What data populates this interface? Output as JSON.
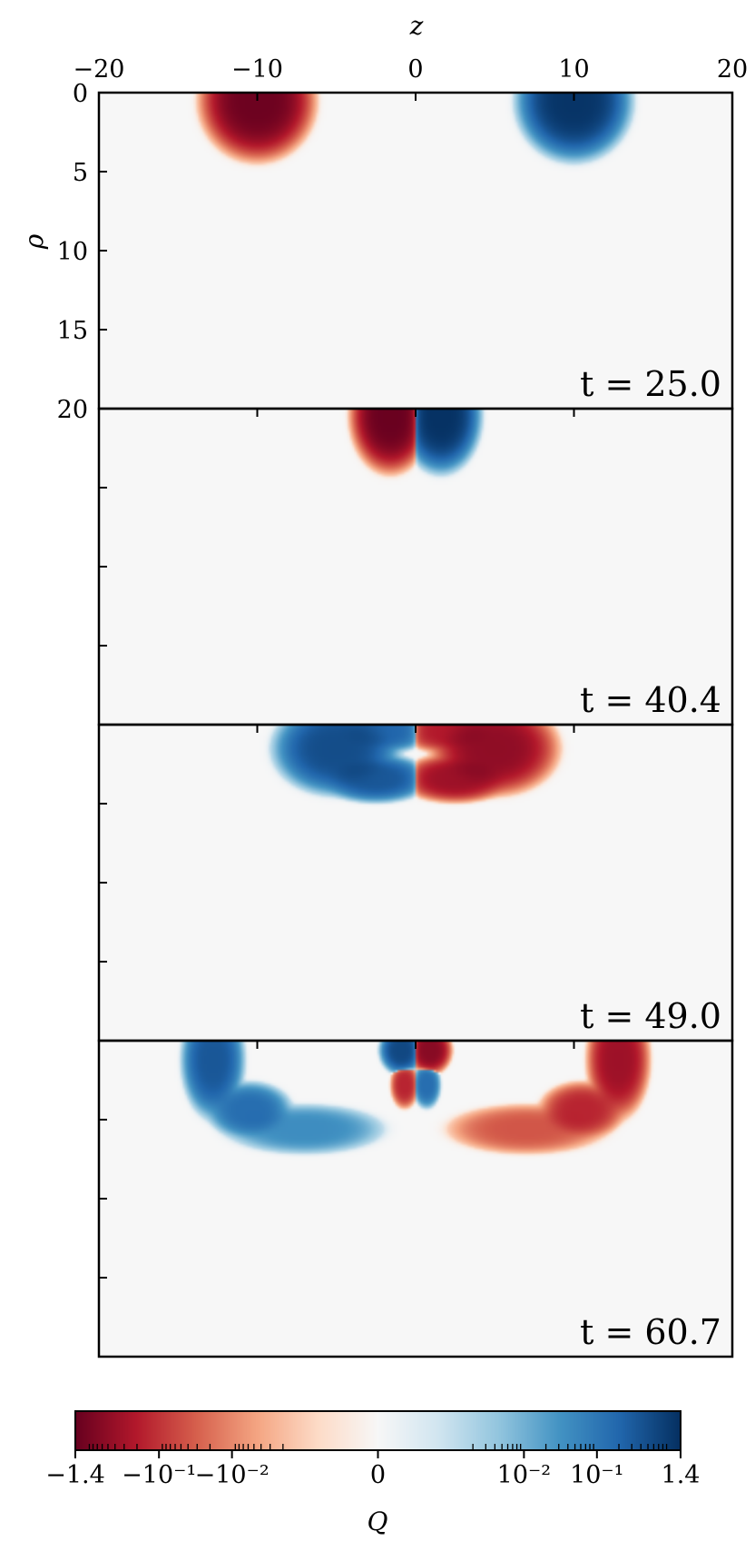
{
  "chart_data": {
    "type": "heatmap",
    "xlabel": "z",
    "ylabel": "ρ",
    "xlim": [
      -20,
      20
    ],
    "ylim": [
      0,
      20
    ],
    "y_inverted": true,
    "x_ticks": [
      -20,
      -10,
      0,
      10,
      20
    ],
    "x_tick_labels": [
      "−20",
      "−10",
      "0",
      "10",
      "20"
    ],
    "y_ticks": [
      0,
      5,
      10,
      15,
      20
    ],
    "y_tick_labels": [
      "0",
      "5",
      "10",
      "15",
      "20"
    ],
    "colormap": "RdBu diverging, symmetric log scale",
    "colors": {
      "neg_max": "#67001f",
      "neg_mid": "#f4a582",
      "zero": "#f7f7f7",
      "pos_mid": "#92c5de",
      "pos_max": "#053061"
    },
    "colorbar": {
      "label": "Q",
      "range": [
        -1.4,
        1.4
      ],
      "linthresh": 0.001,
      "tick_values": [
        -1.4,
        -0.1,
        -0.01,
        0,
        0.01,
        0.1,
        1.4
      ],
      "tick_labels": [
        "−1.4",
        "−10⁻¹",
        "−10⁻²",
        "0",
        "10⁻²",
        "10⁻¹",
        "1.4"
      ]
    },
    "panels": [
      {
        "time_label": "t = 25.0",
        "blobs": [
          {
            "z": -10,
            "rho": 0.5,
            "wz": 2.3,
            "wr": 2.4,
            "value": -1.2
          },
          {
            "z": 10,
            "rho": 0.5,
            "wz": 2.3,
            "wr": 2.4,
            "value": 1.2
          }
        ]
      },
      {
        "time_label": "t = 40.4",
        "blobs": [
          {
            "z": -1.6,
            "rho": 0.4,
            "wz": 1.6,
            "wr": 2.3,
            "value": -1.3
          },
          {
            "z": 1.6,
            "rho": 0.4,
            "wz": 1.6,
            "wr": 2.3,
            "value": 1.3
          }
        ]
      },
      {
        "time_label": "t = 49.0",
        "blobs": [
          {
            "z": -5,
            "rho": 1.5,
            "wz": 2.6,
            "wr": 1.9,
            "value": 0.5
          },
          {
            "z": -2.5,
            "rho": 3.4,
            "wz": 2.3,
            "wr": 1.0,
            "value": 0.35
          },
          {
            "z": -2.0,
            "rho": 0.4,
            "wz": 2.1,
            "wr": 0.9,
            "value": 0.2
          },
          {
            "z": 5,
            "rho": 1.5,
            "wz": 2.6,
            "wr": 1.9,
            "value": -0.5
          },
          {
            "z": 2.5,
            "rho": 3.4,
            "wz": 2.3,
            "wr": 1.0,
            "value": -0.35
          },
          {
            "z": 2.0,
            "rho": 0.4,
            "wz": 2.1,
            "wr": 0.9,
            "value": -0.2
          }
        ]
      },
      {
        "time_label": "t = 60.7",
        "blobs": [
          {
            "z": -12.8,
            "rho": 1.2,
            "wz": 1.3,
            "wr": 2.4,
            "value": 0.35
          },
          {
            "z": -10.5,
            "rho": 4.4,
            "wz": 1.8,
            "wr": 1.2,
            "value": 0.15
          },
          {
            "z": -7,
            "rho": 5.6,
            "wz": 3.5,
            "wr": 1.1,
            "value": 0.04
          },
          {
            "z": -0.9,
            "rho": 0.6,
            "wz": 0.9,
            "wr": 1.0,
            "value": 0.6
          },
          {
            "z": 0.7,
            "rho": 2.8,
            "wz": 0.6,
            "wr": 1.0,
            "value": 0.15
          },
          {
            "z": 12.8,
            "rho": 1.2,
            "wz": 1.3,
            "wr": 2.4,
            "value": -0.35
          },
          {
            "z": 10.5,
            "rho": 4.4,
            "wz": 1.8,
            "wr": 1.2,
            "value": -0.15
          },
          {
            "z": 7,
            "rho": 5.6,
            "wz": 3.5,
            "wr": 1.1,
            "value": -0.04
          },
          {
            "z": 0.9,
            "rho": 0.6,
            "wz": 0.9,
            "wr": 1.0,
            "value": -0.6
          },
          {
            "z": -0.7,
            "rho": 2.8,
            "wz": 0.6,
            "wr": 1.0,
            "value": -0.15
          }
        ]
      }
    ]
  }
}
